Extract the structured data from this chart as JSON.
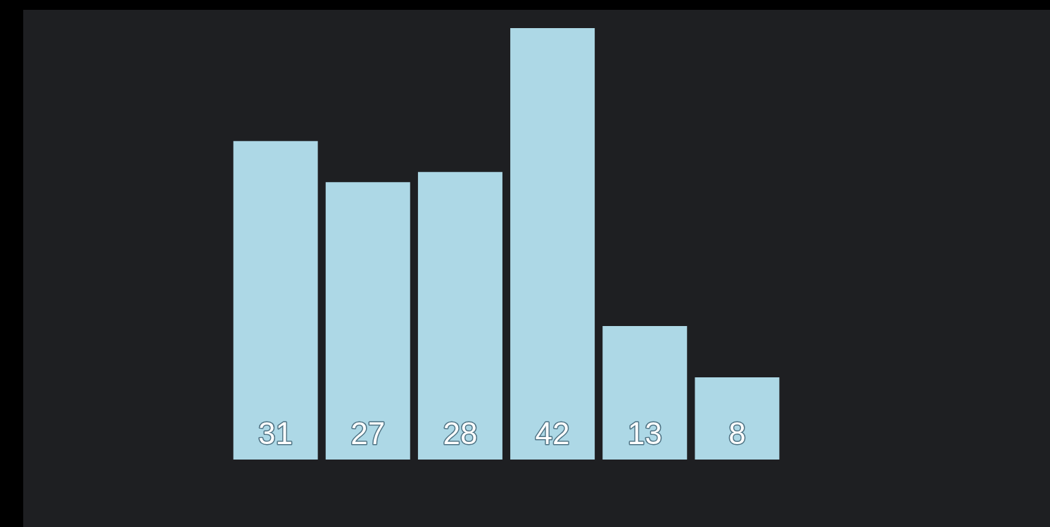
{
  "chart_data": {
    "type": "bar",
    "categories": [
      null,
      null,
      null,
      null,
      null,
      null
    ],
    "values": [
      31,
      27,
      28,
      42,
      13,
      8
    ],
    "color": "#add8e6",
    "data_labels": true,
    "legend": false
  }
}
